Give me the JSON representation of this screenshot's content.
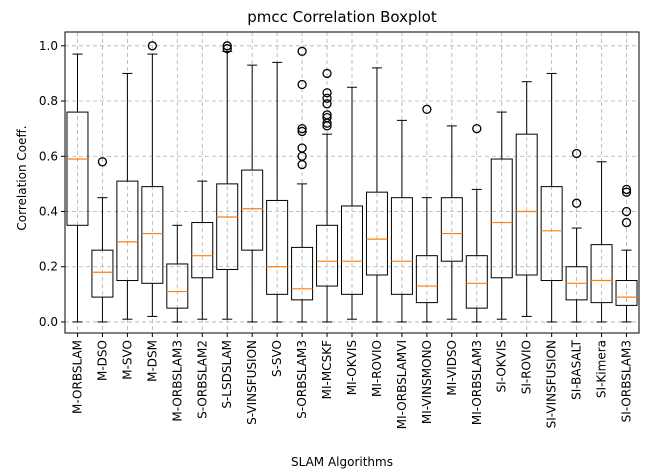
{
  "chart_data": {
    "type": "boxplot",
    "title": "pmcc Correlation Boxplot",
    "xlabel": "SLAM Algorithms",
    "ylabel": "Correlation Coeff.",
    "ylim": [
      -0.04,
      1.05
    ],
    "yticks": [
      0.0,
      0.2,
      0.4,
      0.6,
      0.8,
      1.0
    ],
    "ytick_labels": [
      "0.0",
      "0.2",
      "0.4",
      "0.6",
      "0.8",
      "1.0"
    ],
    "grid": true,
    "box_color": "#000000",
    "median_color": "#ff7f0e",
    "grid_color": "#b0b0b0",
    "boxes": [
      {
        "label": "M-ORBSLAM",
        "whislo": 0.0,
        "q1": 0.35,
        "med": 0.59,
        "q3": 0.76,
        "whishi": 0.97,
        "fliers": []
      },
      {
        "label": "M-DSO",
        "whislo": 0.0,
        "q1": 0.09,
        "med": 0.18,
        "q3": 0.26,
        "whishi": 0.45,
        "fliers": [
          0.58
        ]
      },
      {
        "label": "M-SVO",
        "whislo": 0.01,
        "q1": 0.15,
        "med": 0.29,
        "q3": 0.51,
        "whishi": 0.9,
        "fliers": []
      },
      {
        "label": "M-DSM",
        "whislo": 0.02,
        "q1": 0.14,
        "med": 0.32,
        "q3": 0.49,
        "whishi": 0.97,
        "fliers": [
          1.0
        ]
      },
      {
        "label": "M-ORBSLAM3",
        "whislo": 0.0,
        "q1": 0.05,
        "med": 0.11,
        "q3": 0.21,
        "whishi": 0.35,
        "fliers": []
      },
      {
        "label": "S-ORBSLAM2",
        "whislo": 0.01,
        "q1": 0.16,
        "med": 0.24,
        "q3": 0.36,
        "whishi": 0.51,
        "fliers": []
      },
      {
        "label": "S-LSDSLAM",
        "whislo": 0.01,
        "q1": 0.19,
        "med": 0.38,
        "q3": 0.5,
        "whishi": 0.98,
        "fliers": [
          0.99,
          1.0
        ]
      },
      {
        "label": "S-VINSFUSION",
        "whislo": 0.0,
        "q1": 0.26,
        "med": 0.41,
        "q3": 0.55,
        "whishi": 0.93,
        "fliers": []
      },
      {
        "label": "S-SVO",
        "whislo": 0.0,
        "q1": 0.1,
        "med": 0.2,
        "q3": 0.44,
        "whishi": 0.94,
        "fliers": []
      },
      {
        "label": "S-ORBSLAM3",
        "whislo": 0.0,
        "q1": 0.08,
        "med": 0.12,
        "q3": 0.27,
        "whishi": 0.5,
        "fliers": [
          0.57,
          0.6,
          0.63,
          0.69,
          0.7,
          0.86,
          0.98
        ]
      },
      {
        "label": "MI-MCSKF",
        "whislo": 0.0,
        "q1": 0.13,
        "med": 0.22,
        "q3": 0.35,
        "whishi": 0.68,
        "fliers": [
          0.71,
          0.72,
          0.74,
          0.75,
          0.79,
          0.81,
          0.83,
          0.9
        ]
      },
      {
        "label": "MI-OKVIS",
        "whislo": 0.01,
        "q1": 0.1,
        "med": 0.22,
        "q3": 0.42,
        "whishi": 0.85,
        "fliers": []
      },
      {
        "label": "MI-ROVIO",
        "whislo": 0.0,
        "q1": 0.17,
        "med": 0.3,
        "q3": 0.47,
        "whishi": 0.92,
        "fliers": []
      },
      {
        "label": "MI-ORBSLAMVI",
        "whislo": 0.0,
        "q1": 0.1,
        "med": 0.22,
        "q3": 0.45,
        "whishi": 0.73,
        "fliers": []
      },
      {
        "label": "MI-VINSMONO",
        "whislo": 0.0,
        "q1": 0.07,
        "med": 0.13,
        "q3": 0.24,
        "whishi": 0.45,
        "fliers": [
          0.77
        ]
      },
      {
        "label": "MI-VIDSO",
        "whislo": 0.01,
        "q1": 0.22,
        "med": 0.32,
        "q3": 0.45,
        "whishi": 0.71,
        "fliers": []
      },
      {
        "label": "MI-ORBSLAM3",
        "whislo": 0.0,
        "q1": 0.05,
        "med": 0.14,
        "q3": 0.24,
        "whishi": 0.48,
        "fliers": [
          0.7
        ]
      },
      {
        "label": "SI-OKVIS",
        "whislo": 0.01,
        "q1": 0.16,
        "med": 0.36,
        "q3": 0.59,
        "whishi": 0.76,
        "fliers": []
      },
      {
        "label": "SI-ROVIO",
        "whislo": 0.02,
        "q1": 0.17,
        "med": 0.4,
        "q3": 0.68,
        "whishi": 0.87,
        "fliers": []
      },
      {
        "label": "SI-VINSFUSION",
        "whislo": 0.0,
        "q1": 0.15,
        "med": 0.33,
        "q3": 0.49,
        "whishi": 0.9,
        "fliers": []
      },
      {
        "label": "SI-BASALT",
        "whislo": 0.0,
        "q1": 0.08,
        "med": 0.14,
        "q3": 0.2,
        "whishi": 0.34,
        "fliers": [
          0.43,
          0.61
        ]
      },
      {
        "label": "SI-Kimera",
        "whislo": 0.0,
        "q1": 0.07,
        "med": 0.15,
        "q3": 0.28,
        "whishi": 0.58,
        "fliers": []
      },
      {
        "label": "SI-ORBSLAM3",
        "whislo": 0.0,
        "q1": 0.06,
        "med": 0.09,
        "q3": 0.15,
        "whishi": 0.26,
        "fliers": [
          0.36,
          0.4,
          0.47,
          0.48
        ]
      }
    ]
  }
}
